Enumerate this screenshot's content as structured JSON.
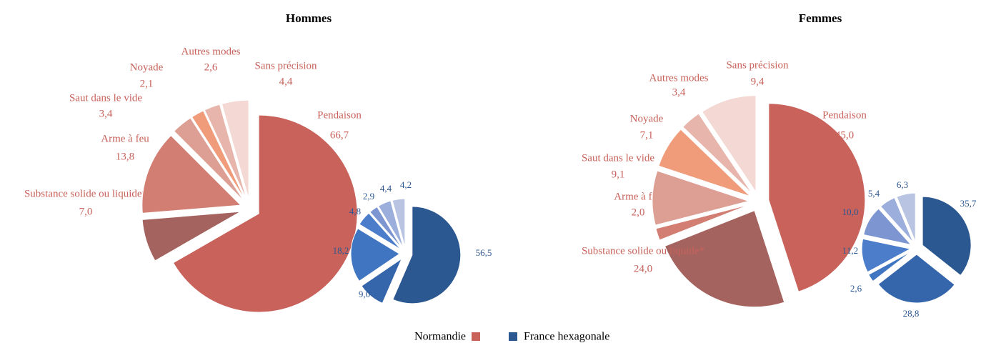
{
  "chart_data": {
    "type": "pie",
    "series": [
      {
        "name": "Normandie",
        "color": "#c8625b"
      },
      {
        "name": "France hexagonale",
        "color": "#2c5891"
      }
    ],
    "panels": [
      {
        "title": "Hommes",
        "categories": [
          "Pendaison",
          "Substance solide ou liquide*",
          "Arme à feu",
          "Saut dans le vide",
          "Noyade",
          "Autres modes",
          "Sans précision"
        ],
        "values": [
          [
            66.7,
            7.0,
            13.8,
            3.4,
            2.1,
            2.6,
            4.4
          ],
          [
            56.5,
            9.0,
            18.2,
            4.8,
            2.9,
            4.4,
            4.2
          ]
        ],
        "value_labels": [
          [
            "66,7",
            "7,0",
            "13,8",
            "3,4",
            "2,1",
            "2,6",
            "4,4"
          ],
          [
            "56,5",
            "9,0",
            "18,2",
            "4,8",
            "2,9",
            "4,4",
            "4,2"
          ]
        ]
      },
      {
        "title": "Femmes",
        "categories": [
          "Pendaison",
          "Substance solide ou liquide*",
          "Arme à feu",
          "Saut dans le vide",
          "Noyade",
          "Autres modes",
          "Sans précision"
        ],
        "values": [
          [
            45.0,
            24.0,
            2.0,
            9.1,
            7.1,
            3.4,
            9.4
          ],
          [
            35.7,
            28.8,
            2.6,
            11.2,
            10.0,
            5.4,
            6.3
          ]
        ],
        "value_labels": [
          [
            "45,0",
            "24,0",
            "2,0",
            "9,1",
            "7,1",
            "3,4",
            "9,4"
          ],
          [
            "35,7",
            "28,8",
            "2,6",
            "11,2",
            "10,0",
            "5,4",
            "6,3"
          ]
        ]
      }
    ],
    "colors": [
      [
        "#c8625b",
        "#a4635e",
        "#d27e73",
        "#dd9e93",
        "#f09c7a",
        "#e7b5ab",
        "#f3d8d3"
      ],
      [
        "#2c5891",
        "#3566ab",
        "#3f75c1",
        "#4c7dcb",
        "#7d95d1",
        "#9caedb",
        "#b8c4e1"
      ]
    ]
  }
}
